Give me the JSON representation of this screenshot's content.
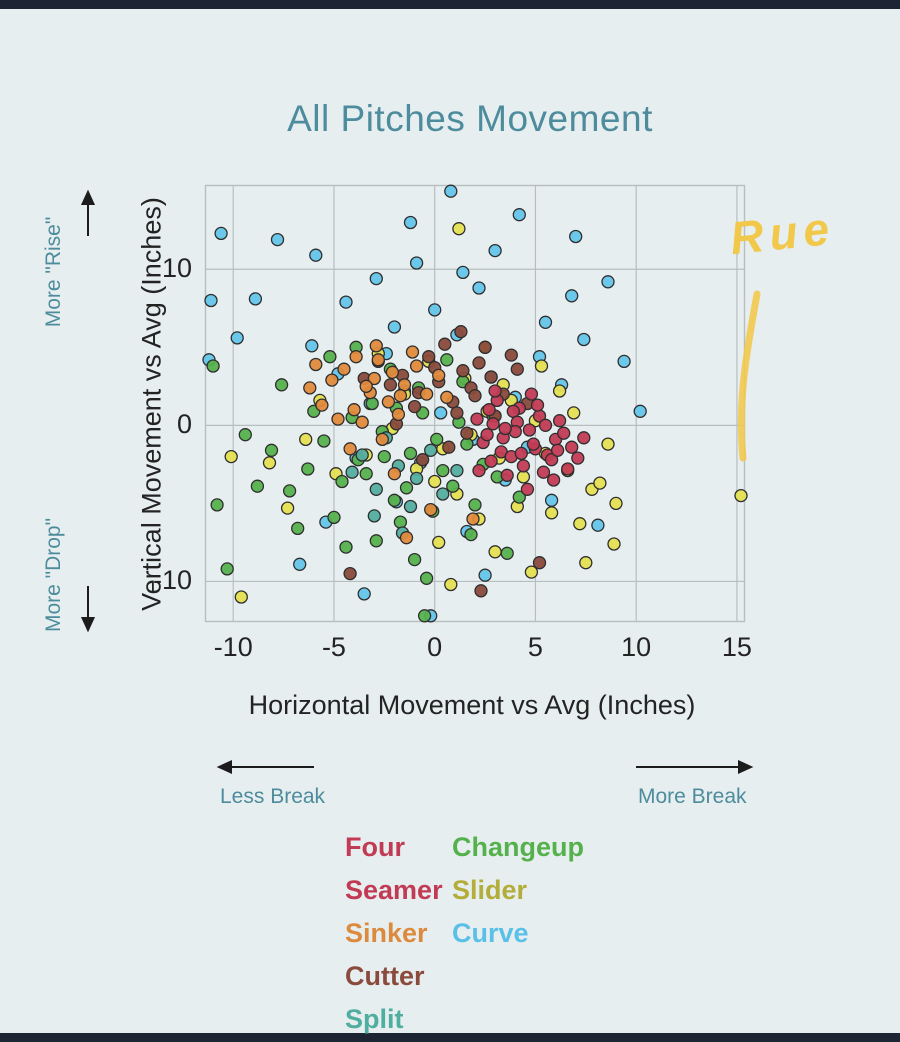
{
  "page": {
    "background": "#e7eef0",
    "bar_color": "#1d2535",
    "title_color": "#4d8c9c",
    "teal": "#4d8c9c",
    "ink": "#232323",
    "grid_color": "#b6bec0"
  },
  "chart_data": {
    "type": "scatter",
    "title": "All Pitches Movement",
    "xlabel": "Horizontal Movement vs Avg (Inches)",
    "ylabel": "Vertical Movement vs Avg (Inches)",
    "xlim": [
      -11.4,
      15.4
    ],
    "ylim": [
      -12.6,
      15.4
    ],
    "xticks": [
      -10,
      -5,
      0,
      5,
      10,
      15
    ],
    "yticks": [
      -10,
      0,
      10
    ],
    "grid": true,
    "legend_position": "bottom",
    "series": [
      {
        "name": "Four Seamer",
        "color": "#c23b54",
        "points": [
          [
            2.1,
            0.4
          ],
          [
            3.4,
            -0.8
          ],
          [
            4.2,
            1.1
          ],
          [
            5.0,
            -1.5
          ],
          [
            2.8,
            -2.3
          ],
          [
            3.9,
            0.9
          ],
          [
            4.7,
            -0.3
          ],
          [
            5.6,
            -1.9
          ],
          [
            3.1,
            1.6
          ],
          [
            2.4,
            -1.1
          ],
          [
            4.4,
            -2.6
          ],
          [
            5.2,
            0.6
          ],
          [
            6.0,
            -0.9
          ],
          [
            3.6,
            -3.2
          ],
          [
            2.9,
            0.1
          ],
          [
            4.9,
            -1.2
          ],
          [
            5.8,
            -2.2
          ],
          [
            6.4,
            -0.5
          ],
          [
            3.3,
            -1.7
          ],
          [
            4.1,
            0.2
          ],
          [
            5.4,
            -3.0
          ],
          [
            2.6,
            -0.6
          ],
          [
            6.8,
            -1.4
          ],
          [
            4.6,
            -4.1
          ],
          [
            3.8,
            -2.0
          ],
          [
            5.1,
            1.3
          ],
          [
            2.2,
            -2.9
          ],
          [
            6.2,
            0.3
          ],
          [
            4.0,
            -0.4
          ],
          [
            5.9,
            -3.5
          ],
          [
            7.1,
            -2.1
          ],
          [
            3.0,
            2.2
          ],
          [
            4.3,
            -1.8
          ],
          [
            5.5,
            0.0
          ],
          [
            6.6,
            -2.8
          ],
          [
            2.7,
            1.0
          ],
          [
            7.4,
            -0.8
          ],
          [
            4.8,
            2.0
          ],
          [
            3.5,
            -0.2
          ],
          [
            6.1,
            -1.6
          ]
        ]
      },
      {
        "name": "Sinker",
        "color": "#e08a3c",
        "points": [
          [
            -3.2,
            2.1
          ],
          [
            -2.1,
            3.4
          ],
          [
            -4.0,
            1.0
          ],
          [
            -1.5,
            2.6
          ],
          [
            -2.8,
            4.2
          ],
          [
            -5.1,
            2.9
          ],
          [
            -3.6,
            0.2
          ],
          [
            -0.9,
            3.8
          ],
          [
            -2.3,
            1.5
          ],
          [
            -4.5,
            3.6
          ],
          [
            -1.8,
            0.7
          ],
          [
            -3.9,
            4.4
          ],
          [
            -0.4,
            2.0
          ],
          [
            -5.6,
            1.3
          ],
          [
            -2.6,
            -0.9
          ],
          [
            -1.1,
            4.7
          ],
          [
            -4.2,
            -1.5
          ],
          [
            -3.0,
            3.0
          ],
          [
            -6.2,
            2.4
          ],
          [
            0.6,
            1.8
          ],
          [
            -2.0,
            -3.1
          ],
          [
            -0.2,
            -5.4
          ],
          [
            -1.4,
            -7.2
          ],
          [
            1.9,
            -6.0
          ],
          [
            -3.4,
            2.5
          ],
          [
            -4.8,
            0.4
          ],
          [
            -2.9,
            5.1
          ],
          [
            0.2,
            3.2
          ],
          [
            -5.9,
            3.9
          ],
          [
            -1.7,
            1.9
          ]
        ]
      },
      {
        "name": "Cutter",
        "color": "#8a4a3c",
        "points": [
          [
            0.2,
            2.8
          ],
          [
            1.4,
            3.5
          ],
          [
            -0.8,
            2.1
          ],
          [
            2.2,
            4.0
          ],
          [
            0.9,
            1.5
          ],
          [
            -1.6,
            3.2
          ],
          [
            1.8,
            2.4
          ],
          [
            -0.3,
            4.4
          ],
          [
            2.8,
            3.1
          ],
          [
            0.5,
            5.2
          ],
          [
            -2.2,
            2.6
          ],
          [
            1.1,
            0.8
          ],
          [
            3.4,
            2.0
          ],
          [
            -1.0,
            1.2
          ],
          [
            2.5,
            5.0
          ],
          [
            0.0,
            3.7
          ],
          [
            -2.8,
            4.1
          ],
          [
            1.6,
            -0.5
          ],
          [
            3.0,
            0.6
          ],
          [
            -1.9,
            0.1
          ],
          [
            4.1,
            3.6
          ],
          [
            0.7,
            -1.4
          ],
          [
            2.0,
            1.9
          ],
          [
            -3.5,
            3.0
          ],
          [
            4.6,
            1.4
          ],
          [
            -0.6,
            -2.2
          ],
          [
            3.8,
            4.5
          ],
          [
            1.3,
            6.0
          ],
          [
            -4.2,
            -9.5
          ],
          [
            5.2,
            -8.8
          ],
          [
            2.3,
            -10.6
          ]
        ]
      },
      {
        "name": "Split",
        "color": "#53ad9f",
        "points": [
          [
            -1.8,
            -2.6
          ],
          [
            -2.9,
            -4.1
          ],
          [
            -0.9,
            -3.4
          ],
          [
            -3.6,
            -1.9
          ],
          [
            -1.2,
            -5.2
          ],
          [
            -2.4,
            -0.8
          ],
          [
            0.4,
            -4.4
          ],
          [
            -4.1,
            -3.0
          ],
          [
            -0.2,
            -1.6
          ],
          [
            -3.0,
            -5.8
          ],
          [
            1.1,
            -2.9
          ],
          [
            -1.6,
            -6.9
          ]
        ]
      },
      {
        "name": "Changeup",
        "color": "#55b14c",
        "points": [
          [
            -1.2,
            -1.8
          ],
          [
            -2.6,
            -0.4
          ],
          [
            0.4,
            -2.9
          ],
          [
            -3.8,
            -2.2
          ],
          [
            -0.6,
            0.8
          ],
          [
            -4.6,
            -3.6
          ],
          [
            1.6,
            -1.2
          ],
          [
            -2.0,
            -4.8
          ],
          [
            -5.5,
            -1.0
          ],
          [
            0.9,
            -3.9
          ],
          [
            -3.1,
            1.4
          ],
          [
            -1.7,
            -6.2
          ],
          [
            2.4,
            -2.5
          ],
          [
            -6.3,
            -2.8
          ],
          [
            -0.1,
            -5.5
          ],
          [
            -4.1,
            0.5
          ],
          [
            1.2,
            0.2
          ],
          [
            -2.9,
            -7.4
          ],
          [
            -7.2,
            -4.2
          ],
          [
            3.1,
            -3.3
          ],
          [
            -1.0,
            -8.6
          ],
          [
            -5.0,
            -5.9
          ],
          [
            0.1,
            -0.9
          ],
          [
            -3.4,
            -3.1
          ],
          [
            2.0,
            -5.1
          ],
          [
            -8.1,
            -1.6
          ],
          [
            -0.8,
            2.4
          ],
          [
            -6.0,
            0.9
          ],
          [
            1.8,
            -7.0
          ],
          [
            -2.2,
            3.6
          ],
          [
            -9.4,
            -0.6
          ],
          [
            -4.4,
            -7.8
          ],
          [
            0.6,
            4.2
          ],
          [
            -11.0,
            3.8
          ],
          [
            -10.3,
            -9.2
          ],
          [
            -1.4,
            -4.0
          ],
          [
            -7.6,
            2.6
          ],
          [
            2.9,
            0.6
          ],
          [
            -3.9,
            5.0
          ],
          [
            -0.4,
            -9.8
          ],
          [
            -6.8,
            -6.6
          ],
          [
            1.4,
            2.8
          ],
          [
            -5.2,
            4.4
          ],
          [
            -2.5,
            -2.0
          ],
          [
            -8.8,
            -3.9
          ],
          [
            4.2,
            -4.6
          ],
          [
            -1.9,
            1.1
          ],
          [
            3.6,
            -8.2
          ],
          [
            -10.8,
            -5.1
          ],
          [
            -0.5,
            -12.2
          ]
        ]
      },
      {
        "name": "Slider",
        "color": "#e5df52",
        "points": [
          [
            1.8,
            -0.6
          ],
          [
            3.2,
            -2.1
          ],
          [
            0.4,
            -1.5
          ],
          [
            4.4,
            -3.3
          ],
          [
            2.6,
            0.9
          ],
          [
            -0.9,
            -2.8
          ],
          [
            5.5,
            -1.8
          ],
          [
            1.1,
            -4.4
          ],
          [
            6.6,
            -2.9
          ],
          [
            3.8,
            1.6
          ],
          [
            -2.1,
            -0.2
          ],
          [
            7.8,
            -4.1
          ],
          [
            0.0,
            -3.6
          ],
          [
            5.0,
            0.3
          ],
          [
            2.2,
            -6.0
          ],
          [
            8.6,
            -1.2
          ],
          [
            -3.4,
            -1.9
          ],
          [
            4.1,
            -5.2
          ],
          [
            6.2,
            2.2
          ],
          [
            1.5,
            3.0
          ],
          [
            -4.9,
            -3.1
          ],
          [
            7.2,
            -6.3
          ],
          [
            3.0,
            -8.1
          ],
          [
            -1.5,
            2.0
          ],
          [
            8.2,
            -3.7
          ],
          [
            0.8,
            -10.2
          ],
          [
            5.8,
            -5.6
          ],
          [
            -6.4,
            -0.9
          ],
          [
            2.5,
            5.0
          ],
          [
            9.0,
            -5.0
          ],
          [
            -0.3,
            4.1
          ],
          [
            6.9,
            0.8
          ],
          [
            -8.2,
            -2.4
          ],
          [
            4.8,
            -9.4
          ],
          [
            1.2,
            12.6
          ],
          [
            -2.8,
            4.6
          ],
          [
            7.5,
            -8.8
          ],
          [
            -10.1,
            -2.0
          ],
          [
            3.4,
            2.6
          ],
          [
            -5.7,
            1.6
          ],
          [
            0.2,
            -7.5
          ],
          [
            8.9,
            -7.6
          ],
          [
            -7.3,
            -5.3
          ],
          [
            5.3,
            3.8
          ],
          [
            -9.6,
            -11.0
          ],
          [
            15.2,
            -4.5
          ]
        ]
      },
      {
        "name": "Curve",
        "color": "#64c5e9",
        "points": [
          [
            0.3,
            0.8
          ],
          [
            -1.5,
            2.2
          ],
          [
            1.9,
            -0.9
          ],
          [
            -3.2,
            1.4
          ],
          [
            2.8,
            3.1
          ],
          [
            -0.7,
            -2.4
          ],
          [
            4.0,
            1.8
          ],
          [
            -2.4,
            4.6
          ],
          [
            1.1,
            5.8
          ],
          [
            -4.8,
            3.3
          ],
          [
            3.5,
            -3.5
          ],
          [
            0.0,
            7.4
          ],
          [
            -1.9,
            -4.9
          ],
          [
            5.2,
            4.4
          ],
          [
            -3.9,
            -2.1
          ],
          [
            2.2,
            8.8
          ],
          [
            -6.1,
            5.1
          ],
          [
            4.6,
            -1.4
          ],
          [
            -0.9,
            10.4
          ],
          [
            6.3,
            2.6
          ],
          [
            -5.4,
            -6.2
          ],
          [
            1.6,
            -6.8
          ],
          [
            -2.9,
            9.4
          ],
          [
            7.4,
            5.5
          ],
          [
            -7.8,
            11.9
          ],
          [
            3.0,
            11.2
          ],
          [
            -4.4,
            7.9
          ],
          [
            5.8,
            -4.8
          ],
          [
            -10.6,
            12.3
          ],
          [
            0.8,
            15.0
          ],
          [
            -1.2,
            13.0
          ],
          [
            8.6,
            9.2
          ],
          [
            -8.9,
            8.1
          ],
          [
            2.5,
            -9.6
          ],
          [
            -6.7,
            -8.9
          ],
          [
            9.4,
            4.1
          ],
          [
            -0.2,
            -12.2
          ],
          [
            6.8,
            8.3
          ],
          [
            -11.1,
            8.0
          ],
          [
            4.2,
            13.5
          ],
          [
            -3.5,
            -10.8
          ],
          [
            8.1,
            -6.4
          ],
          [
            1.4,
            9.8
          ],
          [
            -9.8,
            5.6
          ],
          [
            7.0,
            12.1
          ],
          [
            -5.9,
            10.9
          ],
          [
            10.2,
            0.9
          ],
          [
            -11.2,
            4.2
          ],
          [
            5.5,
            6.6
          ],
          [
            -2.0,
            6.3
          ]
        ]
      }
    ]
  },
  "annotations": {
    "rise": "More \"Rise\"",
    "drop": "More \"Drop\"",
    "less_break": "Less Break",
    "more_break": "More Break",
    "handwriting": "Rue",
    "handwriting_color": "#f2c84b"
  },
  "legend": {
    "columns": [
      {
        "items": [
          {
            "label": "Four",
            "color": "#c23b54"
          },
          {
            "label": "Seamer",
            "color": "#c23b54"
          },
          {
            "label": "Sinker",
            "color": "#dc8a3e"
          },
          {
            "label": "Cutter",
            "color": "#8a4a3c"
          },
          {
            "label": "Split",
            "color": "#4fae9f"
          }
        ]
      },
      {
        "items": [
          {
            "label": "Changeup",
            "color": "#55b14c"
          },
          {
            "label": "Slider",
            "color": "#b3ad3a"
          },
          {
            "label": "Curve",
            "color": "#5bc0e8"
          }
        ]
      }
    ]
  }
}
